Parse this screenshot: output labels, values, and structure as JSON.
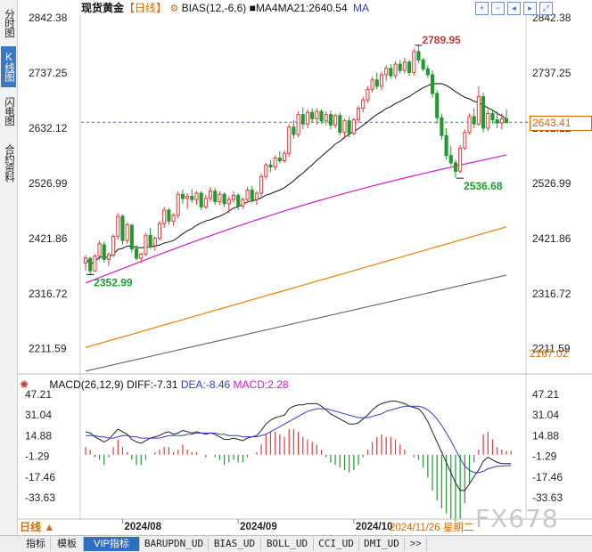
{
  "sidebar": {
    "tabs": [
      {
        "label": "分时图",
        "active": false
      },
      {
        "label": "K线图",
        "active": true
      },
      {
        "label": "闪电图",
        "active": false
      },
      {
        "label": "合约资料",
        "active": false
      }
    ]
  },
  "header": {
    "instrument": "现货黄金",
    "period_tag": "【日线】",
    "bias_text": "BIAS(12,-6,6)",
    "ma_text": "MA4MA21:2640.54",
    "ma_suffix": "MA",
    "tool_icons": [
      "zoom-in-icon",
      "zoom-out-icon",
      "prev-icon",
      "next-icon",
      "fullscreen-icon"
    ]
  },
  "colors": {
    "up": "#e03c3c",
    "down": "#1f9b2e",
    "ma_short": "#111111",
    "ma_mid": "#d019c9",
    "ma_long": "#f08000",
    "ma_longest": "#555555",
    "price_line": "#2f6fc0",
    "price_box": "#d86a00",
    "diff": "#222222",
    "dea": "#2f3ec9",
    "macd": "#d019c9"
  },
  "main_axis": {
    "labels": [
      "2842.38",
      "2737.25",
      "2632.12",
      "2526.99",
      "2421.86",
      "2316.72",
      "2211.59"
    ],
    "current_price": "2643.41",
    "bottom_value": "2167.02"
  },
  "annotations": {
    "high": "2789.95",
    "low_mid": "2536.68",
    "low_start": "2352.99"
  },
  "macd_panel": {
    "title": "MACD(26,12,9)",
    "diff_text": "DIFF:-7.31",
    "dea_text": "DEA:-8.46",
    "macd_text": "MACD:2.28",
    "axis_labels": [
      "47.21",
      "31.04",
      "14.88",
      "-1.29",
      "-17.46",
      "-33.63"
    ]
  },
  "x_axis": {
    "labels": [
      "2024/08",
      "2024/09",
      "2024/10"
    ],
    "cursor_label": "2024/11/26 星期二"
  },
  "period_selector": "日线 ▲",
  "watermark": "FX678",
  "bottom_tabs": [
    "指标",
    "模板",
    "VIP指标",
    "BARUPDN_UD",
    "BIAS_UD",
    "BOLL_UD",
    "CCI_UD",
    "DMI_UD",
    ">>"
  ],
  "chart_data": {
    "type": "candlestick",
    "series": [
      {
        "name": "MA4MA21",
        "values": [
          2640.54
        ]
      }
    ],
    "candles_ohlc": [
      [
        2375,
        2390,
        2360,
        2385
      ],
      [
        2384,
        2387,
        2352,
        2360
      ],
      [
        2360,
        2392,
        2358,
        2388
      ],
      [
        2388,
        2418,
        2380,
        2412
      ],
      [
        2410,
        2416,
        2376,
        2382
      ],
      [
        2382,
        2395,
        2370,
        2391
      ],
      [
        2390,
        2430,
        2386,
        2426
      ],
      [
        2426,
        2470,
        2420,
        2464
      ],
      [
        2464,
        2468,
        2410,
        2418
      ],
      [
        2418,
        2452,
        2412,
        2448
      ],
      [
        2447,
        2450,
        2395,
        2402
      ],
      [
        2402,
        2410,
        2380,
        2384
      ],
      [
        2384,
        2395,
        2375,
        2392
      ],
      [
        2392,
        2432,
        2388,
        2428
      ],
      [
        2428,
        2442,
        2402,
        2408
      ],
      [
        2408,
        2426,
        2398,
        2422
      ],
      [
        2422,
        2455,
        2418,
        2450
      ],
      [
        2450,
        2482,
        2442,
        2476
      ],
      [
        2476,
        2480,
        2448,
        2455
      ],
      [
        2455,
        2470,
        2446,
        2466
      ],
      [
        2466,
        2512,
        2460,
        2506
      ],
      [
        2506,
        2515,
        2488,
        2498
      ],
      [
        2498,
        2508,
        2478,
        2502
      ],
      [
        2502,
        2516,
        2490,
        2496
      ],
      [
        2496,
        2512,
        2486,
        2508
      ],
      [
        2508,
        2512,
        2476,
        2482
      ],
      [
        2482,
        2505,
        2478,
        2498
      ],
      [
        2498,
        2520,
        2492,
        2512
      ],
      [
        2512,
        2518,
        2486,
        2492
      ],
      [
        2492,
        2512,
        2486,
        2506
      ],
      [
        2506,
        2510,
        2482,
        2488
      ],
      [
        2488,
        2502,
        2470,
        2496
      ],
      [
        2496,
        2512,
        2490,
        2504
      ],
      [
        2504,
        2508,
        2476,
        2484
      ],
      [
        2484,
        2500,
        2478,
        2496
      ],
      [
        2496,
        2520,
        2490,
        2514
      ],
      [
        2514,
        2522,
        2490,
        2496
      ],
      [
        2496,
        2512,
        2486,
        2508
      ],
      [
        2508,
        2545,
        2502,
        2540
      ],
      [
        2540,
        2566,
        2535,
        2562
      ],
      [
        2562,
        2572,
        2548,
        2558
      ],
      [
        2558,
        2580,
        2552,
        2575
      ],
      [
        2575,
        2588,
        2565,
        2570
      ],
      [
        2570,
        2590,
        2566,
        2584
      ],
      [
        2584,
        2640,
        2578,
        2634
      ],
      [
        2634,
        2648,
        2612,
        2620
      ],
      [
        2620,
        2664,
        2615,
        2658
      ],
      [
        2658,
        2672,
        2630,
        2640
      ],
      [
        2640,
        2668,
        2632,
        2662
      ],
      [
        2662,
        2670,
        2642,
        2650
      ],
      [
        2650,
        2670,
        2638,
        2664
      ],
      [
        2664,
        2668,
        2640,
        2646
      ],
      [
        2646,
        2664,
        2638,
        2658
      ],
      [
        2658,
        2666,
        2630,
        2638
      ],
      [
        2638,
        2660,
        2632,
        2656
      ],
      [
        2656,
        2662,
        2618,
        2624
      ],
      [
        2624,
        2650,
        2612,
        2646
      ],
      [
        2646,
        2654,
        2614,
        2622
      ],
      [
        2622,
        2652,
        2618,
        2648
      ],
      [
        2648,
        2675,
        2642,
        2670
      ],
      [
        2670,
        2692,
        2662,
        2686
      ],
      [
        2686,
        2712,
        2680,
        2706
      ],
      [
        2706,
        2730,
        2700,
        2724
      ],
      [
        2724,
        2738,
        2706,
        2712
      ],
      [
        2712,
        2740,
        2704,
        2734
      ],
      [
        2734,
        2752,
        2722,
        2746
      ],
      [
        2746,
        2754,
        2726,
        2732
      ],
      [
        2732,
        2760,
        2726,
        2754
      ],
      [
        2754,
        2762,
        2736,
        2742
      ],
      [
        2742,
        2766,
        2736,
        2758
      ],
      [
        2758,
        2762,
        2732,
        2738
      ],
      [
        2738,
        2784,
        2732,
        2778
      ],
      [
        2778,
        2790,
        2756,
        2762
      ],
      [
        2762,
        2766,
        2740,
        2745
      ],
      [
        2745,
        2752,
        2728,
        2734
      ],
      [
        2734,
        2742,
        2690,
        2698
      ],
      [
        2698,
        2704,
        2640,
        2652
      ],
      [
        2652,
        2660,
        2610,
        2618
      ],
      [
        2618,
        2632,
        2572,
        2580
      ],
      [
        2580,
        2598,
        2560,
        2566
      ],
      [
        2566,
        2572,
        2537,
        2550
      ],
      [
        2550,
        2600,
        2546,
        2594
      ],
      [
        2594,
        2630,
        2590,
        2624
      ],
      [
        2624,
        2660,
        2620,
        2654
      ],
      [
        2654,
        2670,
        2632,
        2640
      ],
      [
        2640,
        2712,
        2636,
        2692
      ],
      [
        2692,
        2700,
        2624,
        2632
      ],
      [
        2632,
        2668,
        2626,
        2660
      ],
      [
        2660,
        2668,
        2640,
        2648
      ],
      [
        2648,
        2664,
        2632,
        2642
      ],
      [
        2642,
        2660,
        2630,
        2650
      ],
      [
        2650,
        2668,
        2640,
        2643
      ]
    ],
    "ylim": [
      2167.02,
      2842.38
    ],
    "macd_ylim": [
      -33.63,
      47.21
    ],
    "diff_values": [
      18,
      17,
      14,
      12,
      10,
      12,
      16,
      20,
      18,
      16,
      12,
      10,
      9,
      11,
      13,
      14,
      15,
      17,
      18,
      16,
      17,
      19,
      18,
      17,
      18,
      17,
      16,
      17,
      16,
      14,
      12,
      12,
      13,
      12,
      11,
      13,
      14,
      15,
      19,
      24,
      27,
      29,
      30,
      31,
      36,
      38,
      39,
      39,
      40,
      40,
      40,
      38,
      35,
      32,
      30,
      28,
      26,
      24,
      24,
      25,
      28,
      31,
      35,
      38,
      40,
      41,
      42,
      42,
      41,
      40,
      38,
      37,
      36,
      32,
      26,
      18,
      10,
      2,
      -6,
      -14,
      -22,
      -28,
      -28,
      -23,
      -17,
      -12,
      -5,
      -2,
      -4,
      -6,
      -7,
      -7,
      -7
    ],
    "dea_values": [
      15,
      15,
      15,
      14,
      14,
      13,
      13,
      14,
      15,
      15,
      14,
      14,
      13,
      13,
      13,
      13,
      13,
      14,
      15,
      15,
      15,
      15,
      16,
      16,
      17,
      17,
      17,
      17,
      17,
      16,
      16,
      15,
      15,
      15,
      14,
      14,
      14,
      14,
      15,
      16,
      18,
      20,
      22,
      24,
      26,
      28,
      30,
      32,
      34,
      35,
      36,
      36,
      36,
      35,
      34,
      33,
      32,
      31,
      30,
      29,
      29,
      29,
      30,
      31,
      32,
      34,
      35,
      36,
      37,
      38,
      38,
      38,
      38,
      37,
      35,
      32,
      28,
      23,
      17,
      11,
      4,
      -3,
      -9,
      -12,
      -14,
      -14,
      -13,
      -11,
      -10,
      -9,
      -9,
      -8.5,
      -8.5
    ]
  }
}
